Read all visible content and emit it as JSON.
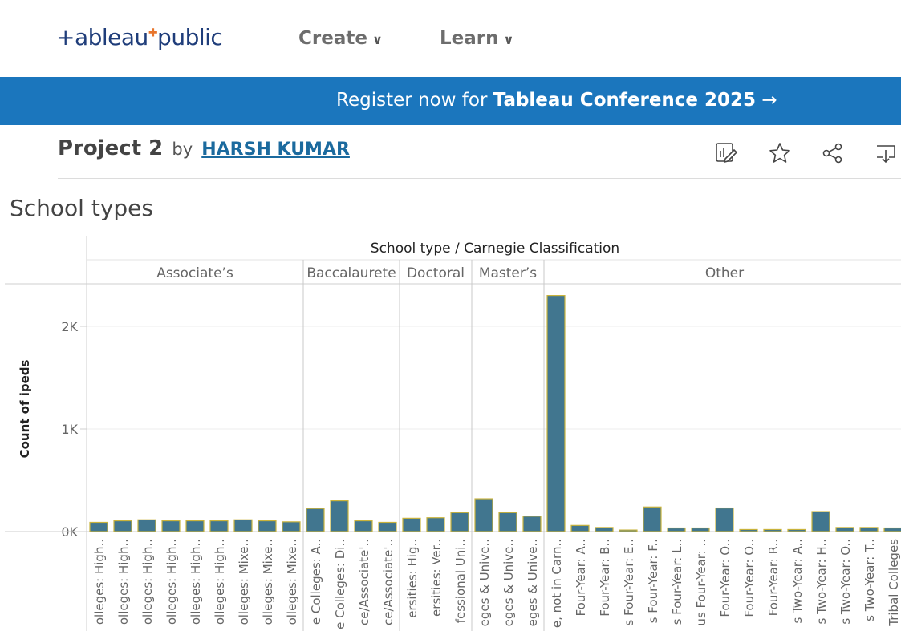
{
  "nav": {
    "logo_left": "+ableau",
    "logo_right": "public",
    "create_label": "Create",
    "learn_label": "Learn"
  },
  "banner": {
    "prefix": "Register now for ",
    "highlight": "Tableau Conference 2025",
    "arrow": "→"
  },
  "viz_header": {
    "title": "Project 2",
    "by": "by",
    "author": "HARSH KUMAR"
  },
  "toolbar": {
    "icons": [
      "edit-icon",
      "star-icon",
      "share-icon",
      "download-icon"
    ]
  },
  "sheet_title": "School types",
  "colors": {
    "bar_fill": "#41768f",
    "bar_stroke": "#c9b33c",
    "banner": "#1b76bd",
    "link": "#1b6a9e"
  },
  "chart_data": {
    "type": "bar",
    "title": "School type / Carnegie Classification",
    "ylabel": "Count of ipeds",
    "ylim": [
      0,
      2400
    ],
    "y_ticks": [
      {
        "value": 0,
        "label": "0K"
      },
      {
        "value": 1000,
        "label": "1K"
      },
      {
        "value": 2000,
        "label": "2K"
      }
    ],
    "grid": true,
    "groups": [
      {
        "name": "Associate’s",
        "categories": [
          "olleges: High..",
          "olleges: High..",
          "olleges: High..",
          "olleges: High..",
          "olleges: High..",
          "olleges: High..",
          "olleges: Mixe..",
          "olleges: Mixe..",
          "olleges: Mixe.."
        ],
        "values": [
          90,
          105,
          115,
          105,
          105,
          105,
          115,
          105,
          95
        ]
      },
      {
        "name": "Baccalaurete",
        "categories": [
          "e Colleges: A..",
          "e Colleges: Di..",
          "ce/Associate'..",
          "ce/Associate'.."
        ],
        "values": [
          225,
          300,
          105,
          90
        ]
      },
      {
        "name": "Doctoral",
        "categories": [
          "ersities: Hig..",
          "ersities: Ver..",
          "fessional Uni.."
        ],
        "values": [
          130,
          135,
          185
        ]
      },
      {
        "name": "Master’s",
        "categories": [
          "eges & Unive..",
          "eges & Unive..",
          "eges & Unive.."
        ],
        "values": [
          320,
          185,
          150
        ]
      },
      {
        "name": "Other",
        "categories": [
          "e, not in Carn..",
          "Four-Year: A..",
          "Four-Year: B..",
          "s Four-Year: E..",
          "s Four-Year: F..",
          "s Four-Year: L..",
          "us Four-Year: ..",
          "Four-Year: O..",
          "Four-Year: O..",
          "Four-Year: R..",
          "s Two-Year: A..",
          "s Two-Year: H..",
          "s Two-Year: O..",
          "s Two-Year: T..",
          "Tribal Colleges"
        ],
        "values": [
          2300,
          60,
          40,
          15,
          240,
          35,
          35,
          230,
          20,
          20,
          20,
          195,
          40,
          40,
          35
        ]
      }
    ]
  }
}
